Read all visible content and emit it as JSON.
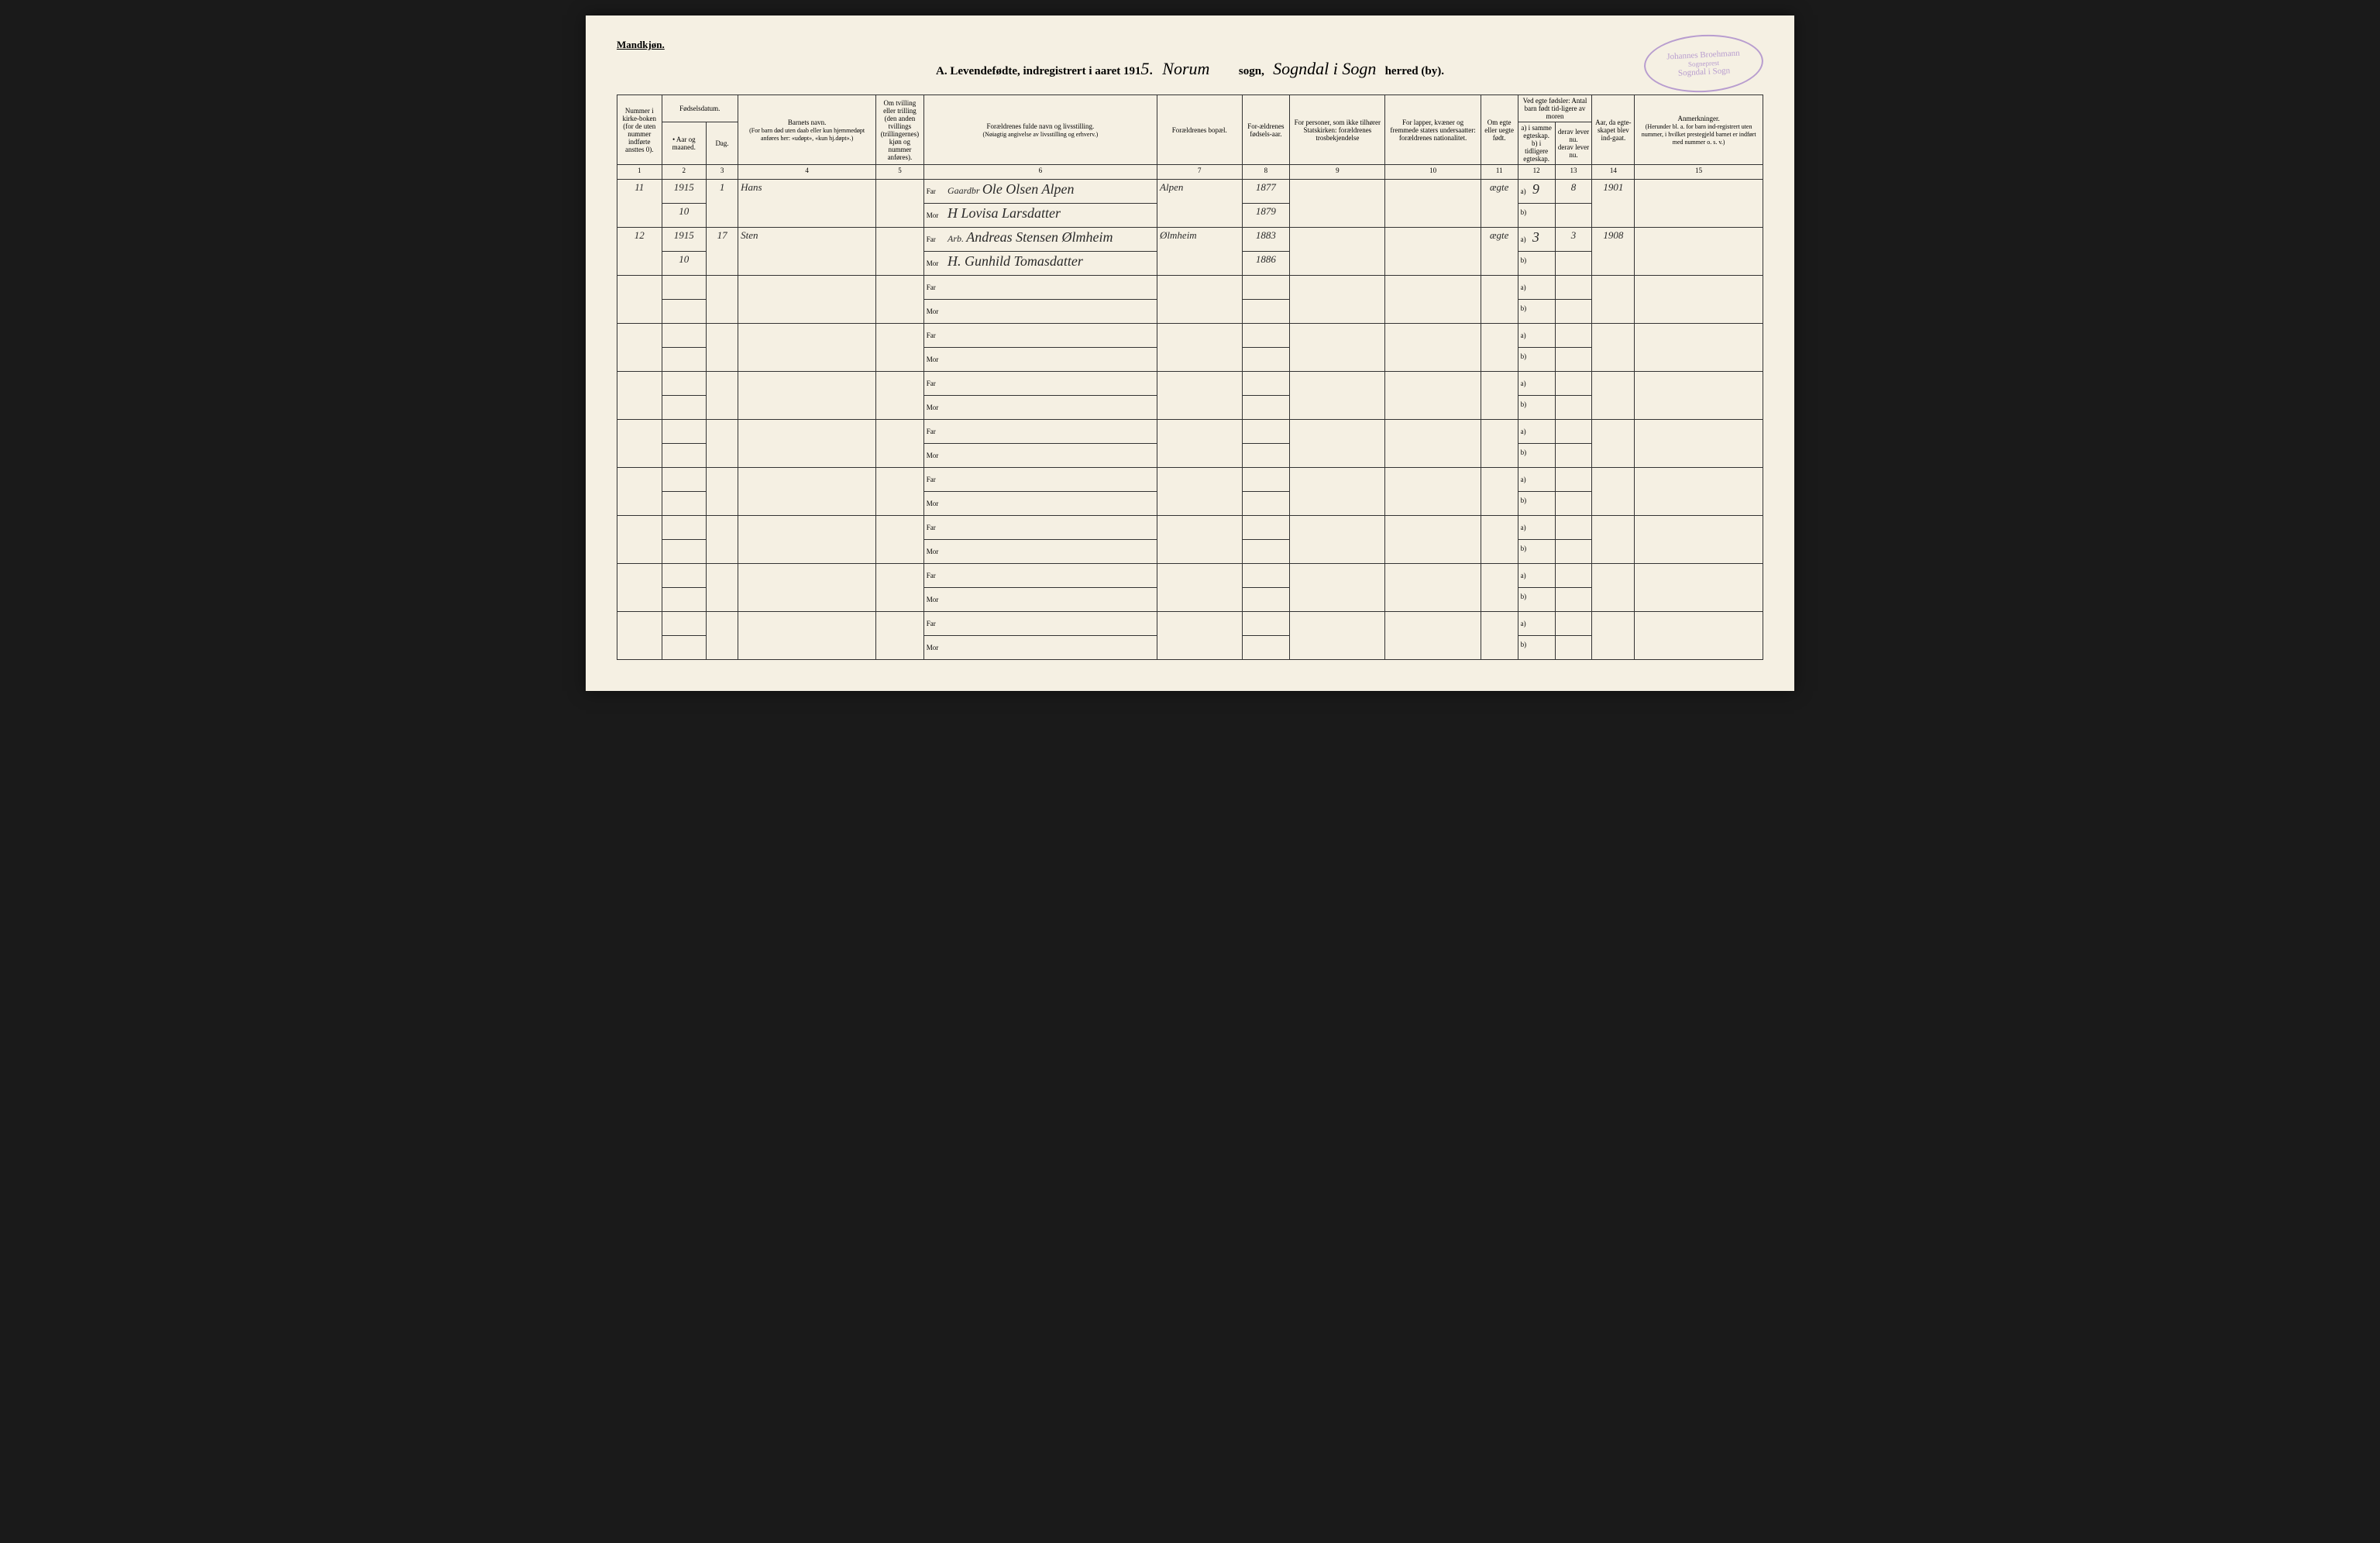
{
  "header_label": "Mandkjøn.",
  "title": {
    "prefix": "A.  Levendefødte, indregistrert i aaret 191",
    "year_suffix": "5.",
    "sogn_hand": "Norum",
    "sogn_label": "sogn,",
    "herred_hand": "Sogndal i Sogn",
    "herred_label": "herred (by)."
  },
  "stamp": {
    "line1": "Johannes Broehmann",
    "line2": "Sogneprest",
    "line3": "Sogndal i Sogn"
  },
  "columns": {
    "c1": "Nummer i kirke-boken (for de uten nummer indførte ansttes 0).",
    "c2a": "Fødselsdatum.",
    "c2b": "• Aar og maaned.",
    "c3": "Dag.",
    "c4": "Barnets navn.",
    "c4sub": "(For barn død uten daab eller kun hjemmedøpt anføres her: «udøpt», «kun hj.døpt».)",
    "c5": "Om tvilling eller trilling (den anden tvillings (trillingernes) kjøn og nummer anføres).",
    "c6": "Forældrenes fulde navn og livsstilling.",
    "c6sub": "(Nøiagtig angivelse av livsstilling og erhverv.)",
    "c7": "Forældrenes bopæl.",
    "c8": "For-ældrenes fødsels-aar.",
    "c9": "For personer, som ikke tilhører Statskirken: forældrenes trosbekjendelse",
    "c10": "For lapper, kvæner og fremmede staters undersaatter: forældrenes nationalitet.",
    "c11": "Om egte eller uegte født.",
    "c12": "Ved egte fødsler: Antal barn født tid-ligere av moren",
    "c12a": "a) i samme egteskap.",
    "c12b": "b) i tidligere egteskap.",
    "c13a": "derav lever nu.",
    "c13b": "derav lever nu.",
    "c14": "Aar, da egte-skapet blev ind-gaat.",
    "c15": "Anmerkninger.",
    "c15sub": "(Herunder bl. a. for barn ind-registrert uten nummer, i hvilket prestegjeld barnet er indført med nummer o. s. v.)"
  },
  "colnums": [
    "1",
    "2",
    "3",
    "4",
    "5",
    "6",
    "7",
    "8",
    "9",
    "10",
    "11",
    "12",
    "13",
    "14",
    "15"
  ],
  "far_label": "Far",
  "mor_label": "Mor",
  "a_label": "a)",
  "b_label": "b)",
  "rows": [
    {
      "num": "11",
      "year": "1915",
      "month": "10",
      "day": "1",
      "name": "Hans",
      "far_occ": "Gaardbr",
      "far": "Ole Olsen Alpen",
      "mor": "H Lovisa Larsdatter",
      "bopel": "Alpen",
      "far_aar": "1877",
      "mor_aar": "1879",
      "egte": "ægte",
      "a_val": "9",
      "a_lever": "8",
      "egte_aar": "1901"
    },
    {
      "num": "12",
      "year": "1915",
      "month": "10",
      "day": "17",
      "name": "Sten",
      "far_occ": "Arb.",
      "far": "Andreas Stensen Ølmheim",
      "mor": "H. Gunhild Tomasdatter",
      "bopel": "Ølmheim",
      "far_aar": "1883",
      "mor_aar": "1886",
      "egte": "ægte",
      "a_val": "3",
      "a_lever": "3",
      "egte_aar": "1908"
    }
  ],
  "empty_row_count": 8,
  "colors": {
    "paper": "#f5f0e3",
    "ink": "#2a2a2a",
    "stamp": "#b89dcf",
    "border": "#333333"
  },
  "col_widths_pct": [
    4.2,
    4.2,
    3.0,
    13.0,
    4.5,
    22.0,
    8.0,
    4.5,
    9.0,
    9.0,
    3.5,
    3.5,
    3.5,
    4.0,
    12.1
  ]
}
